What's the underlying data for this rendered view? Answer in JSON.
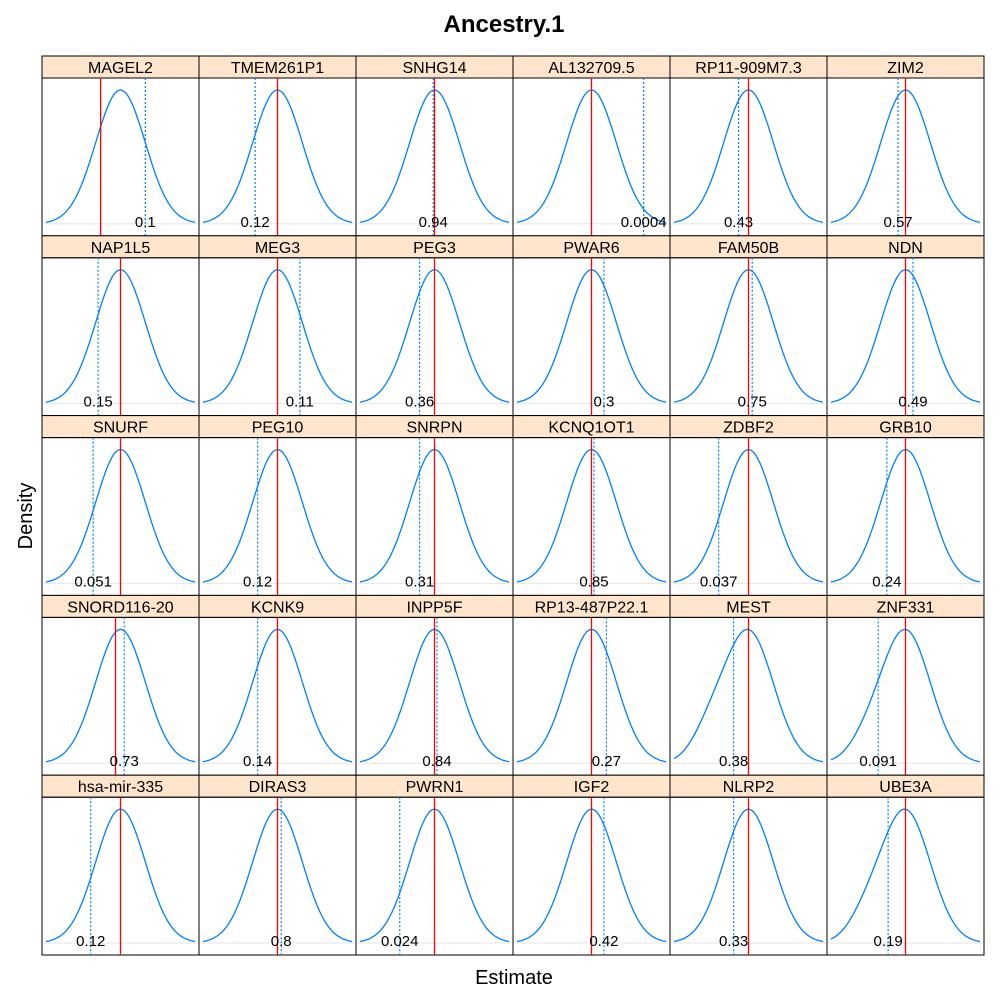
{
  "chart_data": {
    "type": "density-panels",
    "title": "Ancestry.1",
    "xlabel": "Estimate",
    "ylabel": "Density",
    "layout": {
      "columns": 6,
      "rows": 5
    },
    "colors": {
      "density": "#0080ff",
      "observed": "#ff0000",
      "null_mean": "#0080ff",
      "strip_fill": "#ffe5cc",
      "baseline": "#e6e6e6"
    },
    "panels": [
      {
        "label": "MAGEL2",
        "p_value": "0.1",
        "observed": -0.8,
        "dotted": 1.0,
        "sd": 1.0,
        "skew": 0
      },
      {
        "label": "TMEM261P1",
        "p_value": "0.12",
        "observed": 0.0,
        "dotted": -0.9,
        "sd": 1.0,
        "skew": 0
      },
      {
        "label": "SNHG14",
        "p_value": "0.94",
        "observed": 0.0,
        "dotted": -0.05,
        "sd": 1.0,
        "skew": 0
      },
      {
        "label": "AL132709.5",
        "p_value": "0.0004",
        "observed": 0.0,
        "dotted": 2.1,
        "sd": 1.0,
        "skew": 0
      },
      {
        "label": "RP11-909M7.3",
        "p_value": "0.43",
        "observed": 0.0,
        "dotted": -0.4,
        "sd": 1.0,
        "skew": 0
      },
      {
        "label": "ZIM2",
        "p_value": "0.57",
        "observed": 0.0,
        "dotted": -0.3,
        "sd": 1.0,
        "skew": 0
      },
      {
        "label": "NAP1L5",
        "p_value": "0.15",
        "observed": 0.0,
        "dotted": -0.9,
        "sd": 1.0,
        "skew": 0
      },
      {
        "label": "MEG3",
        "p_value": "0.11",
        "observed": 0.0,
        "dotted": 0.9,
        "sd": 1.0,
        "skew": 0
      },
      {
        "label": "PEG3",
        "p_value": "0.36",
        "observed": 0.0,
        "dotted": -0.6,
        "sd": 1.0,
        "skew": 0
      },
      {
        "label": "PWAR6",
        "p_value": "0.3",
        "observed": 0.0,
        "dotted": 0.5,
        "sd": 1.0,
        "skew": 0
      },
      {
        "label": "FAM50B",
        "p_value": "0.75",
        "observed": 0.0,
        "dotted": 0.15,
        "sd": 1.0,
        "skew": 0
      },
      {
        "label": "NDN",
        "p_value": "0.49",
        "observed": 0.0,
        "dotted": 0.3,
        "sd": 1.0,
        "skew": 0
      },
      {
        "label": "SNURF",
        "p_value": "0.051",
        "observed": 0.0,
        "dotted": -1.1,
        "sd": 1.0,
        "skew": 0
      },
      {
        "label": "PEG10",
        "p_value": "0.12",
        "observed": 0.0,
        "dotted": -0.8,
        "sd": 1.0,
        "skew": 0
      },
      {
        "label": "SNRPN",
        "p_value": "0.31",
        "observed": 0.0,
        "dotted": -0.6,
        "sd": 1.0,
        "skew": 0
      },
      {
        "label": "KCNQ1OT1",
        "p_value": "0.85",
        "observed": 0.0,
        "dotted": 0.1,
        "sd": 1.0,
        "skew": 0
      },
      {
        "label": "ZDBF2",
        "p_value": "0.037",
        "observed": 0.0,
        "dotted": -1.2,
        "sd": 1.0,
        "skew": 0
      },
      {
        "label": "GRB10",
        "p_value": "0.24",
        "observed": 0.0,
        "dotted": -0.75,
        "sd": 1.0,
        "skew": 0
      },
      {
        "label": "SNORD116-20",
        "p_value": "0.73",
        "observed": -0.2,
        "dotted": 0.15,
        "sd": 1.0,
        "skew": 0
      },
      {
        "label": "KCNK9",
        "p_value": "0.14",
        "observed": 0.0,
        "dotted": -0.8,
        "sd": 1.0,
        "skew": 0
      },
      {
        "label": "INPP5F",
        "p_value": "0.84",
        "observed": 0.0,
        "dotted": 0.1,
        "sd": 1.0,
        "skew": 0
      },
      {
        "label": "RP13-487P22.1",
        "p_value": "0.27",
        "observed": 0.0,
        "dotted": 0.6,
        "sd": 1.0,
        "skew": 0
      },
      {
        "label": "MEST",
        "p_value": "0.38",
        "observed": 0.0,
        "dotted": -0.6,
        "sd": 1.0,
        "skew": -0.5
      },
      {
        "label": "ZNF331",
        "p_value": "0.091",
        "observed": 0.0,
        "dotted": -1.1,
        "sd": 1.0,
        "skew": -0.3
      },
      {
        "label": "hsa-mir-335",
        "p_value": "0.12",
        "observed": 0.0,
        "dotted": -1.2,
        "sd": 1.0,
        "skew": 0
      },
      {
        "label": "DIRAS3",
        "p_value": "0.8",
        "observed": 0.0,
        "dotted": 0.15,
        "sd": 1.0,
        "skew": 0
      },
      {
        "label": "PWRN1",
        "p_value": "0.024",
        "observed": 0.0,
        "dotted": -1.4,
        "sd": 1.0,
        "skew": 0
      },
      {
        "label": "IGF2",
        "p_value": "0.42",
        "observed": 0.0,
        "dotted": 0.5,
        "sd": 1.0,
        "skew": 0
      },
      {
        "label": "NLRP2",
        "p_value": "0.33",
        "observed": 0.0,
        "dotted": -0.6,
        "sd": 1.0,
        "skew": 0
      },
      {
        "label": "UBE3A",
        "p_value": "0.19",
        "observed": 0.0,
        "dotted": -0.7,
        "sd": 1.0,
        "skew": -0.4
      }
    ]
  }
}
